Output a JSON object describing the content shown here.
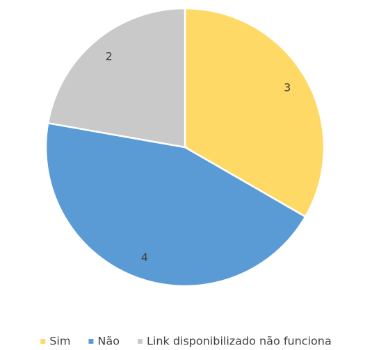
{
  "chart_data": {
    "type": "pie",
    "categories": [
      "Sim",
      "Não",
      "Link disponibilizado não funciona"
    ],
    "values": [
      3,
      4,
      2
    ],
    "colors": [
      "#FFD966",
      "#5B9BD5",
      "#C9C9C9"
    ],
    "legend": "bottom"
  }
}
